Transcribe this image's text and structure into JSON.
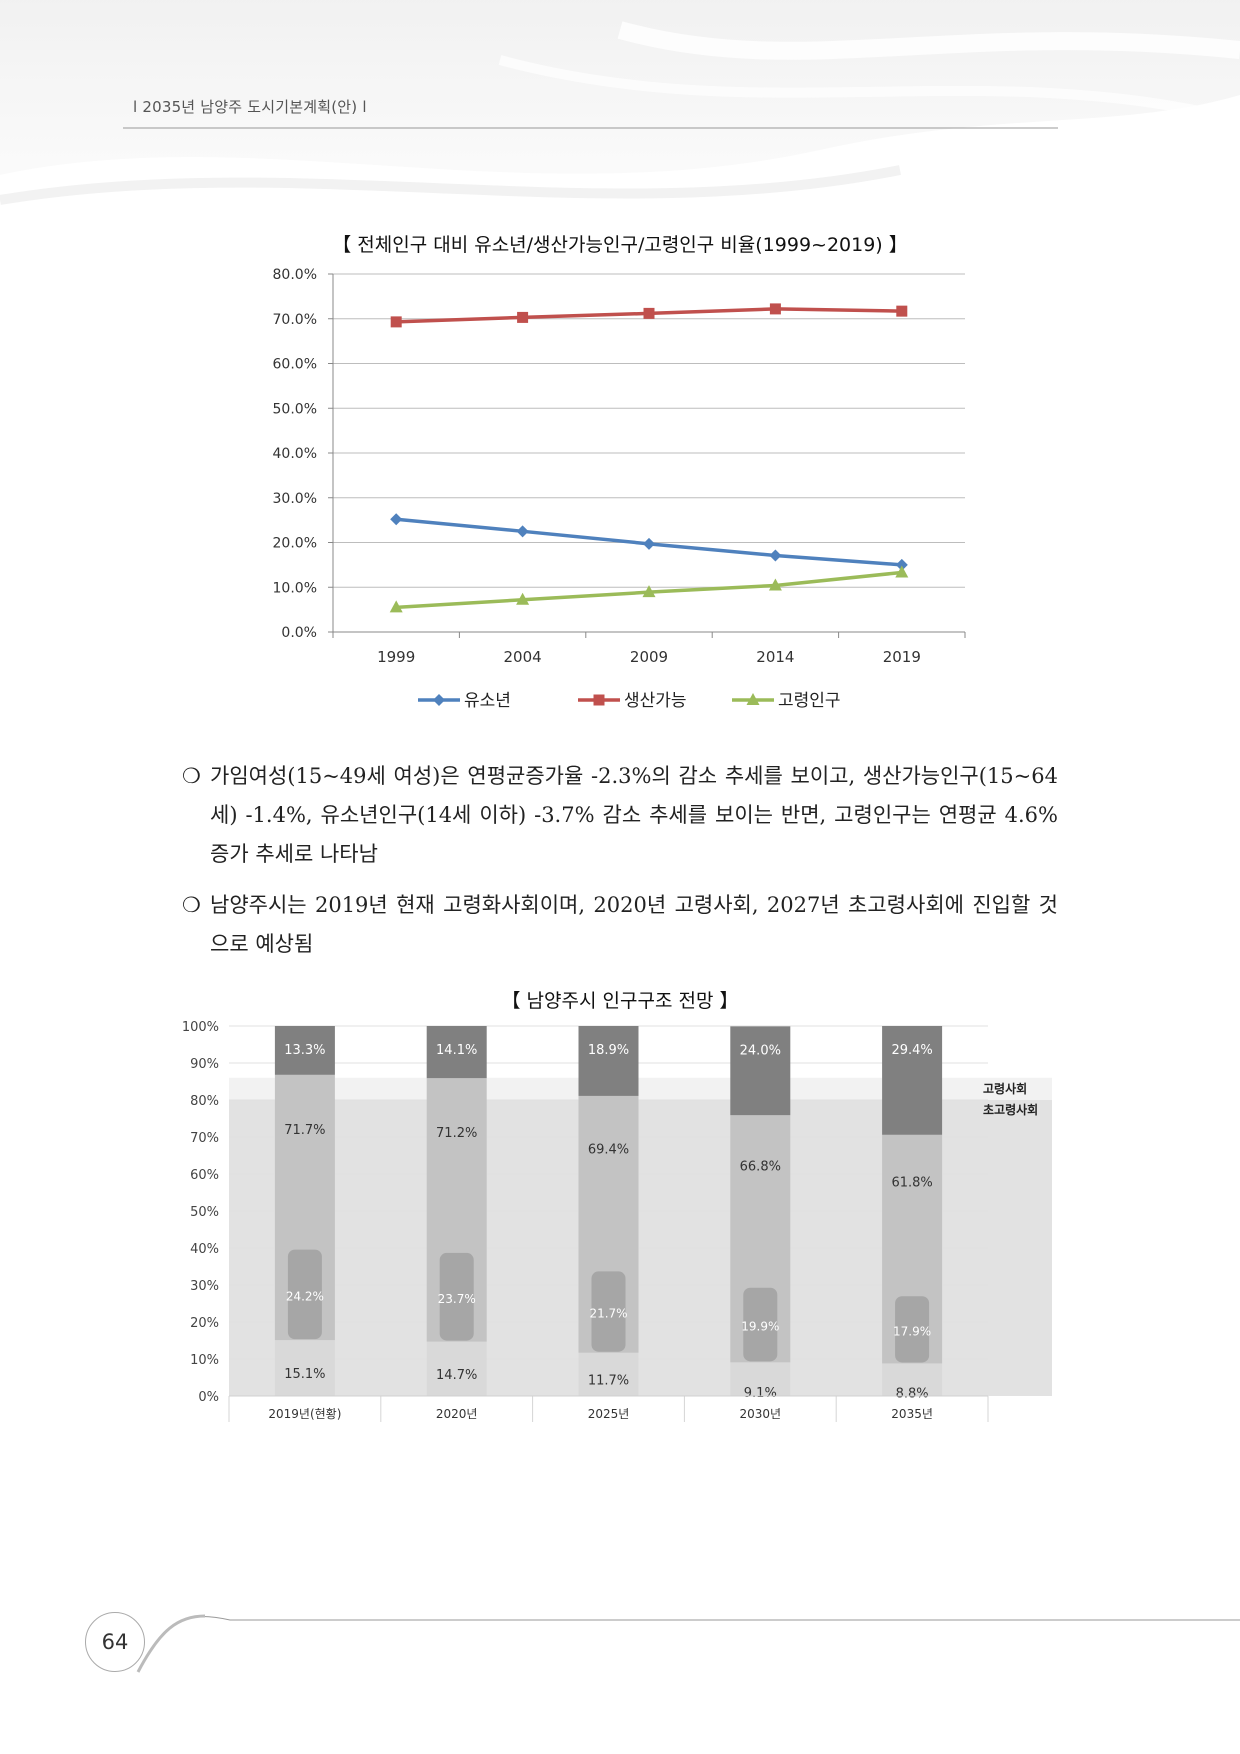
{
  "header": {
    "title": "l  2035년 남양주 도시기본계획(안)  l"
  },
  "line_chart": {
    "title": "【 전체인구 대비 유소년/생산가능인구/고령인구 비율(1999~2019) 】",
    "legend": [
      "유소년",
      "생산가능",
      "고령인구"
    ]
  },
  "bullets": [
    {
      "mark": "❍",
      "text": "가임여성(15~49세 여성)은 연평균증가율 -2.3%의 감소 추세를 보이고, 생산가능인구(15~64세) -1.4%, 유소년인구(14세 이하) -3.7% 감소 추세를 보이는 반면, 고령인구는 연평균 4.6% 증가 추세로 나타남"
    },
    {
      "mark": "❍",
      "text": "남양주시는 2019년 현재 고령화사회이며, 2020년 고령사회, 2027년 초고령사회에 진입할 것으로 예상됨"
    }
  ],
  "bar_chart": {
    "title": "【 남양주시 인구구조 전망 】",
    "band_labels": [
      "고령사회",
      "초고령사회"
    ]
  },
  "page_number": "64",
  "colors": {
    "youth": "#4f81bd",
    "working": "#c0504d",
    "elderly": "#9bbb59",
    "bar_top": "#808080",
    "bar_mid": "#c3c3c3",
    "bar_bottom": "#d9d9d9",
    "bar_inner": "#a6a6a6"
  },
  "chart_data": [
    {
      "type": "line",
      "title": "【 전체인구 대비 유소년/생산가능인구/고령인구 비율(1999~2019) 】",
      "categories": [
        "1999",
        "2004",
        "2009",
        "2014",
        "2019"
      ],
      "series": [
        {
          "name": "유소년",
          "values": [
            25.2,
            22.5,
            19.7,
            17.1,
            15.0
          ]
        },
        {
          "name": "생산가능",
          "values": [
            69.3,
            70.3,
            71.2,
            72.2,
            71.7
          ]
        },
        {
          "name": "고령인구",
          "values": [
            5.5,
            7.2,
            8.9,
            10.4,
            13.3
          ]
        }
      ],
      "ylim": [
        0,
        80
      ],
      "yticks": [
        "0.0%",
        "10.0%",
        "20.0%",
        "30.0%",
        "40.0%",
        "50.0%",
        "60.0%",
        "70.0%",
        "80.0%"
      ],
      "grid": true,
      "legend": "bottom"
    },
    {
      "type": "bar",
      "stacked": true,
      "title": "【 남양주시 인구구조 전망 】",
      "categories": [
        "2019년(현황)",
        "2020년",
        "2025년",
        "2030년",
        "2035년"
      ],
      "series": [
        {
          "values": [
            15.1,
            14.7,
            11.7,
            9.1,
            8.8
          ],
          "labels": [
            "15.1%",
            "14.7%",
            "11.7%",
            "9.1%",
            "8.8%"
          ]
        },
        {
          "values": [
            71.7,
            71.2,
            69.4,
            66.8,
            61.8
          ],
          "labels": [
            "71.7%",
            "71.2%",
            "69.4%",
            "66.8%",
            "61.8%"
          ]
        },
        {
          "values": [
            13.3,
            14.1,
            18.9,
            24.0,
            29.4
          ],
          "labels": [
            "13.3%",
            "14.1%",
            "18.9%",
            "24.0%",
            "29.4%"
          ]
        }
      ],
      "inner_values": [
        24.2,
        23.7,
        21.7,
        19.9,
        17.9
      ],
      "inner_labels": [
        "24.2%",
        "23.7%",
        "21.7%",
        "19.9%",
        "17.9%"
      ],
      "ylim": [
        0,
        100
      ],
      "yticks": [
        "0%",
        "10%",
        "20%",
        "30%",
        "40%",
        "50%",
        "60%",
        "70%",
        "80%",
        "90%",
        "100%"
      ],
      "bands": [
        {
          "label": "고령사회",
          "value": 86
        },
        {
          "label": "초고령사회",
          "value": 80
        }
      ]
    }
  ]
}
